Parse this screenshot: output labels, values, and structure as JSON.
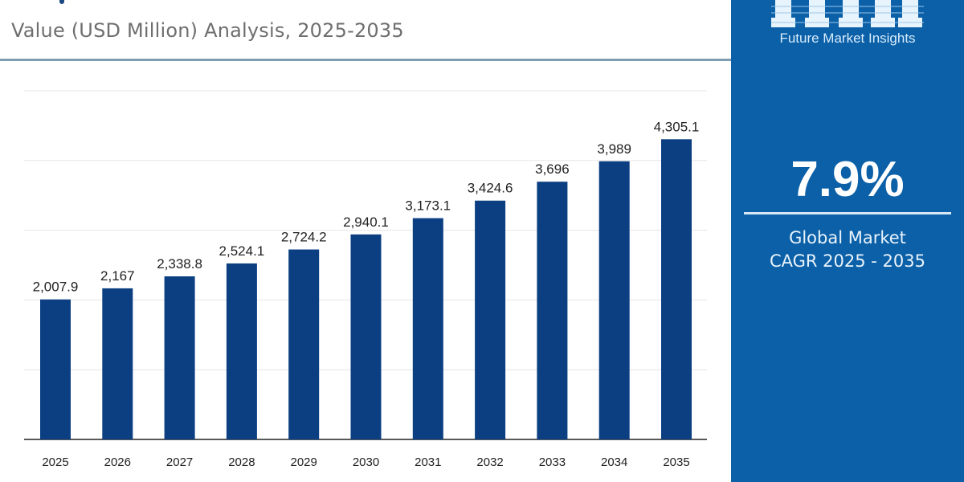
{
  "header": {
    "subtitle": "Value (USD Million) Analysis, 2025-2035"
  },
  "sidebar": {
    "brand": "Future Market Insights",
    "cagr_value": "7.9%",
    "cagr_caption_line1": "Global Market",
    "cagr_caption_line2": "CAGR 2025 - 2035",
    "background": "#0b60a8"
  },
  "chart_data": {
    "type": "bar",
    "categories": [
      "2025",
      "2026",
      "2027",
      "2028",
      "2029",
      "2030",
      "2031",
      "2032",
      "2033",
      "2034",
      "2035"
    ],
    "values": [
      2007.9,
      2167,
      2338.8,
      2524.1,
      2724.2,
      2940.1,
      3173.1,
      3424.6,
      3696,
      3989,
      4305.1
    ],
    "value_labels": [
      "2,007.9",
      "2,167",
      "2,338.8",
      "2,524.1",
      "2,724.2",
      "2,940.1",
      "3,173.1",
      "3,424.6",
      "3,696",
      "3,989",
      "4,305.1"
    ],
    "ylim": [
      0,
      5000
    ],
    "grid": true,
    "bar_color": "#0b3f82",
    "xlabel": "",
    "ylabel": ""
  }
}
